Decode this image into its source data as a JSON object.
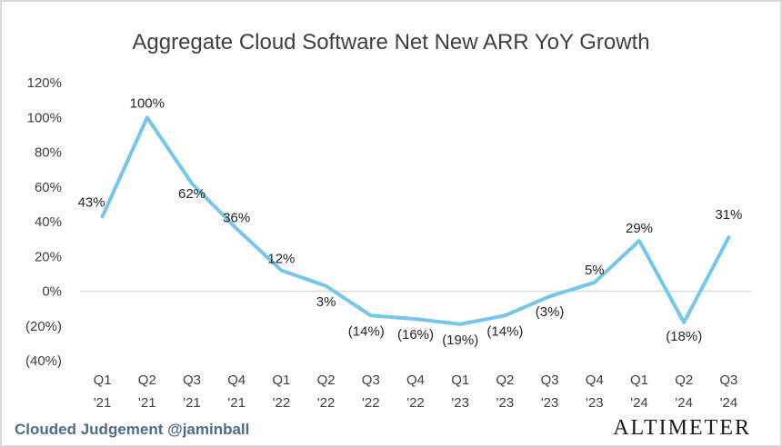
{
  "footer": {
    "attribution": "Clouded Judgement @jaminball",
    "brand": "ALTIMETER"
  },
  "colors": {
    "line": "#74c7ec",
    "zero_line": "#d9d9d9",
    "text": "#404040",
    "attribution": "#4f6a8a"
  },
  "chart_data": {
    "type": "line",
    "title": "Aggregate Cloud Software Net New ARR YoY Growth",
    "xlabel": "",
    "ylabel": "",
    "ylim": [
      -40,
      120
    ],
    "y_ticks": [
      120,
      100,
      80,
      60,
      40,
      20,
      0,
      -20,
      -40
    ],
    "y_tick_labels": [
      "120%",
      "100%",
      "80%",
      "60%",
      "40%",
      "20%",
      "0%",
      "(20%)",
      "(40%)"
    ],
    "grid": false,
    "legend": "none",
    "categories": [
      [
        "Q1",
        "'21"
      ],
      [
        "Q2",
        "'21"
      ],
      [
        "Q3",
        "'21"
      ],
      [
        "Q4",
        "'21"
      ],
      [
        "Q1",
        "'22"
      ],
      [
        "Q2",
        "'22"
      ],
      [
        "Q3",
        "'22"
      ],
      [
        "Q4",
        "'22"
      ],
      [
        "Q1",
        "'23"
      ],
      [
        "Q2",
        "'23"
      ],
      [
        "Q3",
        "'23"
      ],
      [
        "Q4",
        "'23"
      ],
      [
        "Q1",
        "'24"
      ],
      [
        "Q2",
        "'24"
      ],
      [
        "Q3",
        "'24"
      ]
    ],
    "series": [
      {
        "values": [
          43,
          100,
          62,
          36,
          12,
          3,
          -14,
          -16,
          -19,
          -14,
          -3,
          5,
          29,
          -18,
          31
        ],
        "data_labels": [
          "43%",
          "100%",
          "62%",
          "36%",
          "12%",
          "3%",
          "(14%)",
          "(16%)",
          "(19%)",
          "(14%)",
          "(3%)",
          "5%",
          "29%",
          "(18%)",
          "31%"
        ]
      }
    ]
  }
}
